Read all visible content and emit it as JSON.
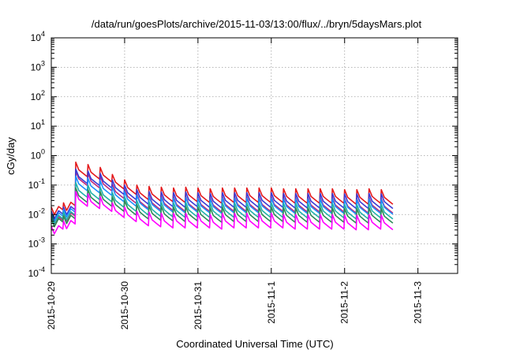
{
  "chart_data": {
    "type": "line",
    "title": "/data/run/goesPlots/archive/2015-11-03/13:00/flux/../bryn/5daysMars.plot",
    "xlabel": "Coordinated Universal Time (UTC)",
    "ylabel": "cGy/day",
    "yscale": "log",
    "ylim": [
      0.0001,
      10000
    ],
    "xlim": [
      "2015-10-29T00:00",
      "2015-11-03T13:00"
    ],
    "grid": true,
    "legend": "none",
    "y_ticks": [
      {
        "base": "10",
        "exp": "-4"
      },
      {
        "base": "10",
        "exp": "-3"
      },
      {
        "base": "10",
        "exp": "-2"
      },
      {
        "base": "10",
        "exp": "-1"
      },
      {
        "base": "10",
        "exp": "0"
      },
      {
        "base": "10",
        "exp": "1"
      },
      {
        "base": "10",
        "exp": "2"
      },
      {
        "base": "10",
        "exp": "3"
      },
      {
        "base": "10",
        "exp": "4"
      }
    ],
    "x_ticks": [
      "2015-10-29",
      "2015-10-30",
      "2015-10-31",
      "2015-11-1",
      "2015-11-2",
      "2015-11-3"
    ],
    "x_tick_dates": [
      "2015-10-29T00:00",
      "2015-10-30T00:00",
      "2015-10-31T00:00",
      "2015-11-01T00:00",
      "2015-11-02T00:00",
      "2015-11-03T00:00"
    ],
    "series": [
      {
        "color": "#e41a1c",
        "values": [
          0.018,
          0.025,
          0.6,
          0.5,
          0.4,
          0.23,
          0.15,
          0.1,
          0.09,
          0.085,
          0.08,
          0.085,
          0.08,
          0.075,
          0.08,
          0.08,
          0.08,
          0.08,
          0.08,
          0.075,
          0.075,
          0.075,
          0.075,
          0.075,
          0.07,
          0.07,
          0.075,
          0.07
        ]
      },
      {
        "color": "#c0287a",
        "values": [
          0.008,
          0.011,
          0.3,
          0.25,
          0.2,
          0.11,
          0.075,
          0.05,
          0.045,
          0.043,
          0.04,
          0.042,
          0.04,
          0.038,
          0.04,
          0.04,
          0.04,
          0.04,
          0.04,
          0.038,
          0.038,
          0.038,
          0.038,
          0.038,
          0.035,
          0.035,
          0.038,
          0.035
        ]
      },
      {
        "color": "#3b3bd6",
        "values": [
          0.013,
          0.018,
          0.35,
          0.3,
          0.25,
          0.15,
          0.1,
          0.07,
          0.06,
          0.058,
          0.055,
          0.058,
          0.055,
          0.052,
          0.055,
          0.055,
          0.055,
          0.055,
          0.055,
          0.052,
          0.052,
          0.052,
          0.052,
          0.052,
          0.05,
          0.05,
          0.052,
          0.05
        ]
      },
      {
        "color": "#1e90ff",
        "values": [
          0.011,
          0.015,
          0.2,
          0.17,
          0.14,
          0.085,
          0.06,
          0.045,
          0.04,
          0.038,
          0.036,
          0.038,
          0.036,
          0.034,
          0.036,
          0.036,
          0.036,
          0.036,
          0.036,
          0.034,
          0.034,
          0.034,
          0.034,
          0.034,
          0.032,
          0.032,
          0.034,
          0.032
        ]
      },
      {
        "color": "#20b2aa",
        "values": [
          0.009,
          0.012,
          0.12,
          0.1,
          0.085,
          0.055,
          0.04,
          0.03,
          0.027,
          0.026,
          0.025,
          0.026,
          0.025,
          0.024,
          0.025,
          0.025,
          0.025,
          0.025,
          0.025,
          0.024,
          0.024,
          0.024,
          0.024,
          0.024,
          0.022,
          0.022,
          0.024,
          0.022
        ]
      },
      {
        "color": "#2e8b57",
        "values": [
          0.007,
          0.009,
          0.08,
          0.07,
          0.06,
          0.04,
          0.03,
          0.022,
          0.02,
          0.019,
          0.018,
          0.019,
          0.018,
          0.017,
          0.018,
          0.018,
          0.018,
          0.018,
          0.018,
          0.017,
          0.017,
          0.017,
          0.017,
          0.017,
          0.016,
          0.016,
          0.017,
          0.016
        ]
      },
      {
        "color": "#ff00ff",
        "values": [
          0.004,
          0.006,
          0.06,
          0.05,
          0.04,
          0.025,
          0.018,
          0.013,
          0.012,
          0.011,
          0.011,
          0.011,
          0.011,
          0.01,
          0.011,
          0.011,
          0.011,
          0.011,
          0.011,
          0.01,
          0.01,
          0.01,
          0.01,
          0.01,
          0.0095,
          0.0095,
          0.01,
          0.0095
        ]
      }
    ]
  }
}
